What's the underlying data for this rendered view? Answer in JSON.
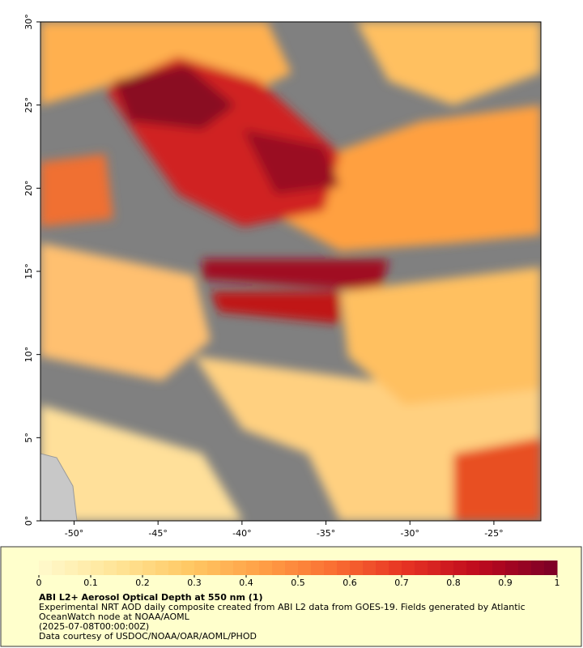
{
  "map": {
    "xaxis": {
      "lim": [
        -52,
        -22.2
      ],
      "ticks": [
        {
          "value": -50,
          "label": "-50°"
        },
        {
          "value": -45,
          "label": "-45°"
        },
        {
          "value": -40,
          "label": "-40°"
        },
        {
          "value": -35,
          "label": "-35°"
        },
        {
          "value": -30,
          "label": "-30°"
        },
        {
          "value": -25,
          "label": "-25°"
        }
      ]
    },
    "yaxis": {
      "lim": [
        0,
        30
      ],
      "ticks": [
        {
          "value": 0,
          "label": "0°"
        },
        {
          "value": 5,
          "label": "5°"
        },
        {
          "value": 10,
          "label": "10°"
        },
        {
          "value": 15,
          "label": "15°"
        },
        {
          "value": 20,
          "label": "20°"
        },
        {
          "value": 25,
          "label": "25°"
        },
        {
          "value": 30,
          "label": "30°"
        }
      ]
    }
  },
  "colorbar": {
    "lim": [
      0,
      1
    ],
    "ticks": [
      0,
      0.1,
      0.2,
      0.3,
      0.4,
      0.5,
      0.6,
      0.7,
      0.8,
      0.9,
      1
    ]
  },
  "caption": {
    "title": "ABI L2+ Aerosol Optical Depth at 550 nm (1)",
    "lines": [
      "Experimental NRT AOD daily composite created from ABI L2 data from GOES-19. Fields generated by Atlantic OceanWatch node at NOAA/AOML",
      "(2025-07-08T00:00:00Z)",
      "Data courtesy of USDOC/NOAA/OAR/AOML/PHOD"
    ]
  }
}
